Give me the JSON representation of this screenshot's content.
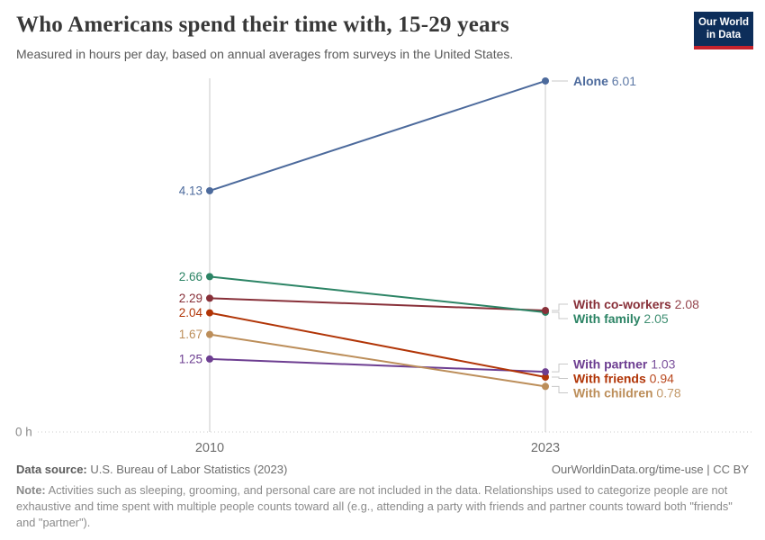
{
  "header": {
    "title": "Who Americans spend their time with, 15-29 years",
    "subtitle": "Measured in hours per day, based on annual averages from surveys in the United States.",
    "logo": {
      "line1": "Our World",
      "line2": "in Data"
    }
  },
  "chart_data": {
    "type": "line",
    "variant": "slope",
    "x": [
      "2010",
      "2023"
    ],
    "baseline_label": "0 h",
    "ylim": [
      0,
      6.05
    ],
    "grid": "baseline-dotted",
    "legend_position": "end-of-line-labels",
    "series": [
      {
        "name": "Alone",
        "values": [
          4.13,
          6.01
        ],
        "color": "#4c6a9c"
      },
      {
        "name": "With co-workers",
        "values": [
          2.29,
          2.08
        ],
        "color": "#883039"
      },
      {
        "name": "With family",
        "values": [
          2.66,
          2.05
        ],
        "color": "#2c8465"
      },
      {
        "name": "With partner",
        "values": [
          1.25,
          1.03
        ],
        "color": "#6d3e91"
      },
      {
        "name": "With friends",
        "values": [
          2.04,
          0.94
        ],
        "color": "#b13507"
      },
      {
        "name": "With children",
        "values": [
          1.67,
          0.78
        ],
        "color": "#bc8e5a"
      }
    ]
  },
  "footer": {
    "source_label": "Data source:",
    "source_value": "U.S. Bureau of Labor Statistics (2023)",
    "link": "OurWorldinData.org/time-use | CC BY",
    "note_label": "Note:",
    "note_text": "Activities such as sleeping, grooming, and personal care are not included in the data. Relationships used to categorize people are not exhaustive and time spent with multiple people counts toward all (e.g., attending a party with friends and partner counts toward both \"friends\" and \"partner\")."
  }
}
